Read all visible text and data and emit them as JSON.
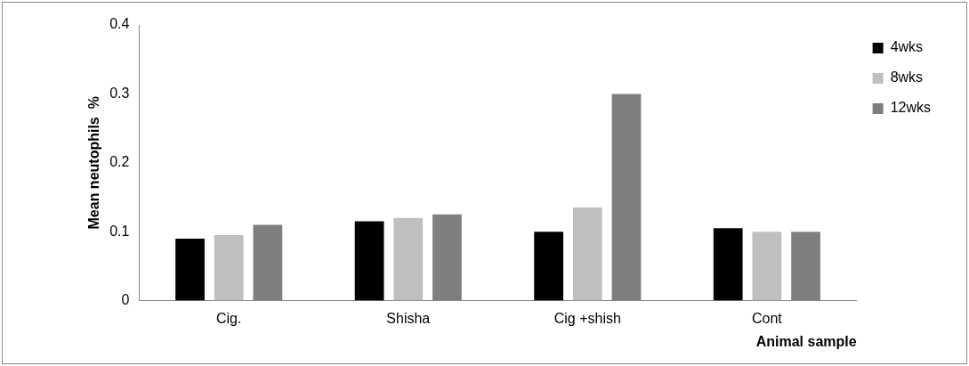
{
  "chart_data": {
    "type": "bar",
    "xlabel": "Animal sample",
    "ylabel": "Mean neutophils  %",
    "categories": [
      "Cig.",
      "Shisha",
      "Cig +shish",
      "Cont"
    ],
    "series": [
      {
        "name": "4wks",
        "color": "#000000",
        "values": [
          0.09,
          0.115,
          0.1,
          0.105
        ]
      },
      {
        "name": "8wks",
        "color": "#bfbfbf",
        "values": [
          0.095,
          0.12,
          0.135,
          0.1
        ]
      },
      {
        "name": "12wks",
        "color": "#7f7f7f",
        "values": [
          0.11,
          0.125,
          0.3,
          0.1
        ]
      }
    ],
    "ylim": [
      0,
      0.4
    ],
    "yticks": [
      0,
      0.1,
      0.2,
      0.3,
      0.4
    ],
    "grid": false,
    "legend": "right"
  }
}
